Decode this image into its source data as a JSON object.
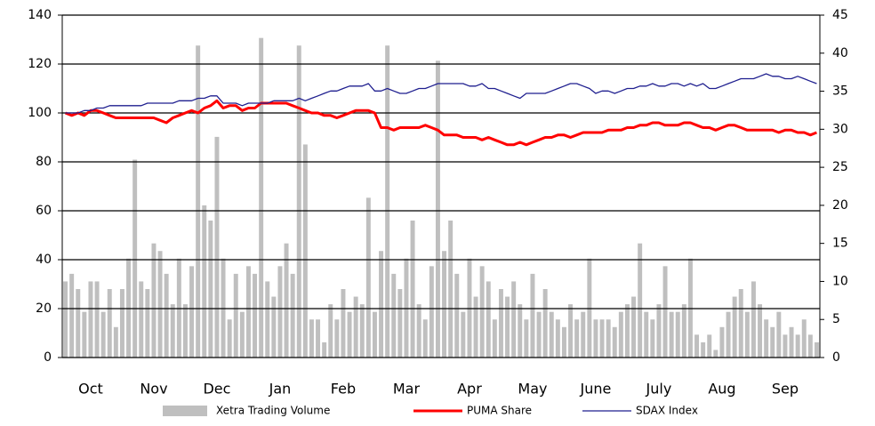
{
  "chart_data": {
    "type": "combo",
    "categories": [
      null,
      null,
      null,
      null,
      "Oct",
      null,
      null,
      null,
      null,
      null,
      null,
      null,
      null,
      null,
      "Nov",
      null,
      null,
      null,
      null,
      null,
      null,
      null,
      null,
      null,
      "Dec",
      null,
      null,
      null,
      null,
      null,
      null,
      null,
      null,
      null,
      "Jan",
      null,
      null,
      null,
      null,
      null,
      null,
      null,
      null,
      null,
      "Feb",
      null,
      null,
      null,
      null,
      null,
      null,
      null,
      null,
      null,
      "Mar",
      null,
      null,
      null,
      null,
      null,
      null,
      null,
      null,
      null,
      "Apr",
      null,
      null,
      null,
      null,
      null,
      null,
      null,
      null,
      null,
      "May",
      null,
      null,
      null,
      null,
      null,
      null,
      null,
      null,
      null,
      "June",
      null,
      null,
      null,
      null,
      null,
      null,
      null,
      null,
      null,
      "July",
      null,
      null,
      null,
      null,
      null,
      null,
      null,
      null,
      null,
      "Aug",
      null,
      null,
      null,
      null,
      null,
      null,
      null,
      null,
      null,
      "Sep",
      null,
      null,
      null,
      null,
      null
    ],
    "ylim": [
      0,
      140
    ],
    "yticks": [
      0,
      20,
      40,
      60,
      80,
      100,
      120,
      140
    ],
    "y2lim": [
      0,
      45
    ],
    "y2ticks": [
      0,
      5,
      10,
      15,
      20,
      25,
      30,
      35,
      40,
      45
    ],
    "grid": true,
    "series": [
      {
        "name": "Xetra Trading Volume",
        "type": "bar",
        "axis": "y2",
        "color": "#bfbfbf",
        "values": [
          10,
          11,
          9,
          6,
          10,
          10,
          6,
          9,
          4,
          9,
          13,
          26,
          10,
          9,
          15,
          14,
          11,
          7,
          13,
          7,
          12,
          41,
          20,
          18,
          29,
          13,
          5,
          11,
          6,
          12,
          11,
          42,
          10,
          8,
          12,
          15,
          11,
          41,
          28,
          5,
          5,
          2,
          7,
          5,
          9,
          6,
          8,
          7,
          21,
          6,
          14,
          41,
          11,
          9,
          13,
          18,
          7,
          5,
          12,
          39,
          14,
          18,
          11,
          6,
          13,
          8,
          12,
          10,
          5,
          9,
          8,
          10,
          7,
          5,
          11,
          6,
          9,
          6,
          5,
          4,
          7,
          5,
          6,
          13,
          5,
          5,
          5,
          4,
          6,
          7,
          8,
          15,
          6,
          5,
          7,
          12,
          6,
          6,
          7,
          13,
          3,
          2,
          3,
          1,
          4,
          6,
          8,
          9,
          6,
          10,
          7,
          5,
          4,
          6,
          3,
          4,
          3,
          5,
          3,
          2
        ]
      },
      {
        "name": "PUMA Share",
        "type": "line",
        "color": "#ff0000",
        "width": 3,
        "values": [
          100,
          99,
          100,
          99,
          101,
          101,
          100,
          99,
          98,
          98,
          98,
          98,
          98,
          98,
          98,
          97,
          96,
          98,
          99,
          100,
          101,
          100,
          102,
          103,
          105,
          102,
          103,
          103,
          101,
          102,
          102,
          104,
          104,
          104,
          104,
          104,
          103,
          102,
          101,
          100,
          100,
          99,
          99,
          98,
          99,
          100,
          101,
          101,
          101,
          100,
          94,
          94,
          93,
          94,
          94,
          94,
          94,
          95,
          94,
          93,
          91,
          91,
          91,
          90,
          90,
          90,
          89,
          90,
          89,
          88,
          87,
          87,
          88,
          87,
          88,
          89,
          90,
          90,
          91,
          91,
          90,
          91,
          92,
          92,
          92,
          92,
          93,
          93,
          93,
          94,
          94,
          95,
          95,
          96,
          96,
          95,
          95,
          95,
          96,
          96,
          95,
          94,
          94,
          93,
          94,
          95,
          95,
          94,
          93,
          93,
          93,
          93,
          93,
          92,
          93,
          93,
          92,
          92,
          91,
          92
        ]
      },
      {
        "name": "SDAX Index",
        "type": "line",
        "color": "#1f1f8f",
        "width": 1.3,
        "values": [
          100,
          100,
          100,
          101,
          101,
          102,
          102,
          103,
          103,
          103,
          103,
          103,
          103,
          104,
          104,
          104,
          104,
          104,
          105,
          105,
          105,
          106,
          106,
          107,
          107,
          104,
          104,
          104,
          103,
          104,
          104,
          104,
          104,
          105,
          105,
          105,
          105,
          106,
          105,
          106,
          107,
          108,
          109,
          109,
          110,
          111,
          111,
          111,
          112,
          109,
          109,
          110,
          109,
          108,
          108,
          109,
          110,
          110,
          111,
          112,
          112,
          112,
          112,
          112,
          111,
          111,
          112,
          110,
          110,
          109,
          108,
          107,
          106,
          108,
          108,
          108,
          108,
          109,
          110,
          111,
          112,
          112,
          111,
          110,
          108,
          109,
          109,
          108,
          109,
          110,
          110,
          111,
          111,
          112,
          111,
          111,
          112,
          112,
          111,
          112,
          111,
          112,
          110,
          110,
          111,
          112,
          113,
          114,
          114,
          114,
          115,
          116,
          115,
          115,
          114,
          114,
          115,
          114,
          113,
          112
        ]
      }
    ]
  }
}
